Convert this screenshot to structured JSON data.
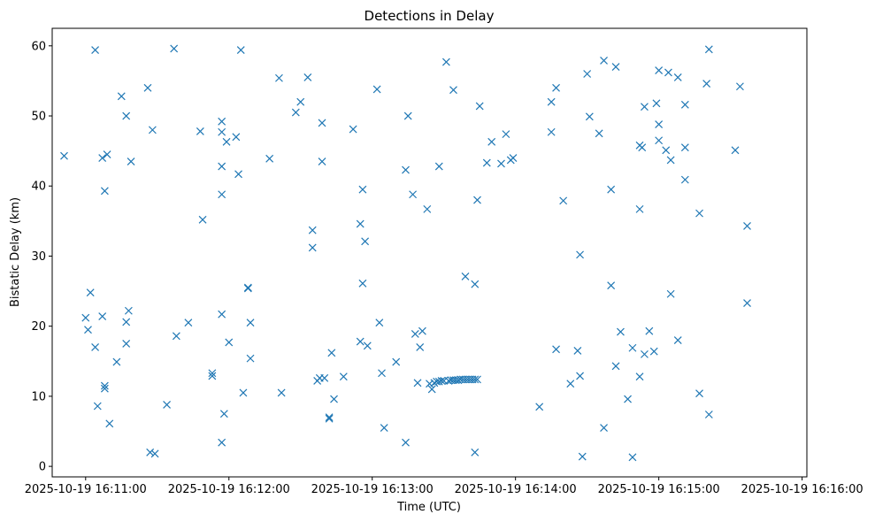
{
  "chart_data": {
    "type": "scatter",
    "title": "Detections in Delay",
    "xlabel": "Time (UTC)",
    "ylabel": "Bistatic Delay (km)",
    "marker": "x",
    "color": "#1f77b4",
    "grid": false,
    "xlim": [
      "2025-10-19 16:10:46",
      "2025-10-19 16:16:02"
    ],
    "ylim": [
      -1.5,
      62.5
    ],
    "x_ticks": [
      "2025-10-19 16:11:00",
      "2025-10-19 16:12:00",
      "2025-10-19 16:13:00",
      "2025-10-19 16:14:00",
      "2025-10-19 16:15:00",
      "2025-10-19 16:16:00"
    ],
    "y_ticks": [
      "0",
      "10",
      "20",
      "30",
      "40",
      "50",
      "60"
    ],
    "points": [
      [
        "16:10:51",
        44.3
      ],
      [
        "16:11:00",
        21.2
      ],
      [
        "16:11:01",
        19.5
      ],
      [
        "16:11:02",
        24.8
      ],
      [
        "16:11:04",
        17.0
      ],
      [
        "16:11:04",
        59.4
      ],
      [
        "16:11:05",
        8.6
      ],
      [
        "16:11:07",
        44.0
      ],
      [
        "16:11:07",
        21.4
      ],
      [
        "16:11:08",
        11.5
      ],
      [
        "16:11:08",
        11.1
      ],
      [
        "16:11:08",
        39.3
      ],
      [
        "16:11:09",
        44.5
      ],
      [
        "16:11:10",
        6.1
      ],
      [
        "16:11:13",
        14.9
      ],
      [
        "16:11:15",
        52.8
      ],
      [
        "16:11:17",
        50.0
      ],
      [
        "16:11:17",
        17.5
      ],
      [
        "16:11:17",
        20.6
      ],
      [
        "16:11:18",
        22.2
      ],
      [
        "16:11:19",
        43.5
      ],
      [
        "16:11:26",
        54.0
      ],
      [
        "16:11:27",
        2.0
      ],
      [
        "16:11:28",
        48.0
      ],
      [
        "16:11:29",
        1.8
      ],
      [
        "16:11:34",
        8.8
      ],
      [
        "16:11:37",
        59.6
      ],
      [
        "16:11:38",
        18.6
      ],
      [
        "16:11:43",
        20.5
      ],
      [
        "16:11:48",
        47.8
      ],
      [
        "16:11:49",
        35.2
      ],
      [
        "16:11:53",
        13.3
      ],
      [
        "16:11:53",
        12.9
      ],
      [
        "16:11:57",
        49.2
      ],
      [
        "16:11:57",
        47.7
      ],
      [
        "16:11:57",
        42.8
      ],
      [
        "16:11:57",
        38.8
      ],
      [
        "16:11:57",
        21.7
      ],
      [
        "16:11:57",
        3.4
      ],
      [
        "16:11:58",
        7.5
      ],
      [
        "16:11:59",
        46.3
      ],
      [
        "16:12:00",
        17.7
      ],
      [
        "16:12:03",
        47.0
      ],
      [
        "16:12:04",
        41.7
      ],
      [
        "16:12:05",
        59.4
      ],
      [
        "16:12:06",
        10.5
      ],
      [
        "16:12:08",
        25.5
      ],
      [
        "16:12:08",
        25.4
      ],
      [
        "16:12:09",
        20.5
      ],
      [
        "16:12:09",
        15.4
      ],
      [
        "16:12:17",
        43.9
      ],
      [
        "16:12:21",
        55.4
      ],
      [
        "16:12:22",
        10.5
      ],
      [
        "16:12:28",
        50.5
      ],
      [
        "16:12:30",
        52.0
      ],
      [
        "16:12:33",
        55.5
      ],
      [
        "16:12:35",
        33.7
      ],
      [
        "16:12:35",
        31.2
      ],
      [
        "16:12:37",
        12.2
      ],
      [
        "16:12:38",
        12.6
      ],
      [
        "16:12:39",
        43.5
      ],
      [
        "16:12:39",
        49.0
      ],
      [
        "16:12:40",
        12.6
      ],
      [
        "16:12:42",
        7.0
      ],
      [
        "16:12:42",
        6.8
      ],
      [
        "16:12:43",
        16.2
      ],
      [
        "16:12:44",
        9.6
      ],
      [
        "16:12:48",
        12.8
      ],
      [
        "16:12:52",
        48.1
      ],
      [
        "16:12:55",
        17.8
      ],
      [
        "16:12:55",
        34.6
      ],
      [
        "16:12:56",
        39.5
      ],
      [
        "16:12:56",
        26.1
      ],
      [
        "16:12:57",
        32.1
      ],
      [
        "16:12:58",
        17.2
      ],
      [
        "16:13:02",
        53.8
      ],
      [
        "16:13:03",
        20.5
      ],
      [
        "16:13:04",
        13.3
      ],
      [
        "16:13:05",
        5.5
      ],
      [
        "16:13:10",
        14.9
      ],
      [
        "16:13:14",
        42.3
      ],
      [
        "16:13:14",
        3.4
      ],
      [
        "16:13:15",
        50.0
      ],
      [
        "16:13:17",
        38.8
      ],
      [
        "16:13:18",
        18.9
      ],
      [
        "16:13:19",
        11.9
      ],
      [
        "16:13:20",
        17.0
      ],
      [
        "16:13:21",
        19.3
      ],
      [
        "16:13:23",
        36.7
      ],
      [
        "16:13:24",
        11.8
      ],
      [
        "16:13:25",
        11.0
      ],
      [
        "16:13:26",
        11.9
      ],
      [
        "16:13:27",
        12.1
      ],
      [
        "16:13:28",
        12.1
      ],
      [
        "16:13:28",
        42.8
      ],
      [
        "16:13:29",
        12.2
      ],
      [
        "16:13:30",
        12.2
      ],
      [
        "16:13:31",
        57.7
      ],
      [
        "16:13:32",
        12.2
      ],
      [
        "16:13:33",
        12.3
      ],
      [
        "16:13:34",
        53.7
      ],
      [
        "16:13:34",
        12.3
      ],
      [
        "16:13:35",
        12.3
      ],
      [
        "16:13:36",
        12.3
      ],
      [
        "16:13:37",
        12.4
      ],
      [
        "16:13:38",
        12.4
      ],
      [
        "16:13:39",
        12.4
      ],
      [
        "16:13:39",
        27.1
      ],
      [
        "16:13:40",
        12.4
      ],
      [
        "16:13:41",
        12.4
      ],
      [
        "16:13:42",
        12.4
      ],
      [
        "16:13:43",
        12.4
      ],
      [
        "16:13:43",
        26.0
      ],
      [
        "16:13:43",
        2.0
      ],
      [
        "16:13:44",
        38.0
      ],
      [
        "16:13:44",
        12.4
      ],
      [
        "16:13:45",
        51.4
      ],
      [
        "16:13:48",
        43.3
      ],
      [
        "16:13:50",
        46.3
      ],
      [
        "16:13:54",
        43.2
      ],
      [
        "16:13:56",
        47.4
      ],
      [
        "16:13:58",
        43.7
      ],
      [
        "16:13:59",
        44.0
      ],
      [
        "16:14:10",
        8.5
      ],
      [
        "16:14:15",
        52.0
      ],
      [
        "16:14:15",
        47.7
      ],
      [
        "16:14:17",
        54.0
      ],
      [
        "16:14:17",
        16.7
      ],
      [
        "16:14:20",
        37.9
      ],
      [
        "16:14:23",
        11.8
      ],
      [
        "16:14:26",
        16.5
      ],
      [
        "16:14:27",
        12.9
      ],
      [
        "16:14:27",
        30.2
      ],
      [
        "16:14:28",
        1.4
      ],
      [
        "16:14:30",
        56.0
      ],
      [
        "16:14:31",
        49.9
      ],
      [
        "16:14:35",
        47.5
      ],
      [
        "16:14:37",
        57.9
      ],
      [
        "16:14:37",
        5.5
      ],
      [
        "16:14:40",
        39.5
      ],
      [
        "16:14:40",
        25.8
      ],
      [
        "16:14:42",
        57.0
      ],
      [
        "16:14:42",
        14.3
      ],
      [
        "16:14:44",
        19.2
      ],
      [
        "16:14:47",
        9.6
      ],
      [
        "16:14:49",
        16.9
      ],
      [
        "16:14:49",
        1.3
      ],
      [
        "16:14:52",
        36.7
      ],
      [
        "16:14:52",
        45.8
      ],
      [
        "16:14:52",
        12.8
      ],
      [
        "16:14:53",
        45.5
      ],
      [
        "16:14:54",
        51.3
      ],
      [
        "16:14:54",
        16.0
      ],
      [
        "16:14:56",
        19.3
      ],
      [
        "16:14:58",
        16.4
      ],
      [
        "16:14:59",
        51.8
      ],
      [
        "16:15:00",
        46.5
      ],
      [
        "16:15:00",
        48.8
      ],
      [
        "16:15:00",
        56.5
      ],
      [
        "16:15:03",
        45.1
      ],
      [
        "16:15:04",
        56.2
      ],
      [
        "16:15:05",
        43.7
      ],
      [
        "16:15:05",
        24.6
      ],
      [
        "16:15:08",
        55.5
      ],
      [
        "16:15:08",
        18.0
      ],
      [
        "16:15:11",
        51.6
      ],
      [
        "16:15:11",
        45.5
      ],
      [
        "16:15:11",
        40.9
      ],
      [
        "16:15:17",
        36.1
      ],
      [
        "16:15:17",
        10.4
      ],
      [
        "16:15:20",
        54.6
      ],
      [
        "16:15:21",
        59.5
      ],
      [
        "16:15:21",
        7.4
      ],
      [
        "16:15:32",
        45.1
      ],
      [
        "16:15:34",
        54.2
      ],
      [
        "16:15:37",
        34.3
      ],
      [
        "16:15:37",
        23.3
      ]
    ]
  }
}
